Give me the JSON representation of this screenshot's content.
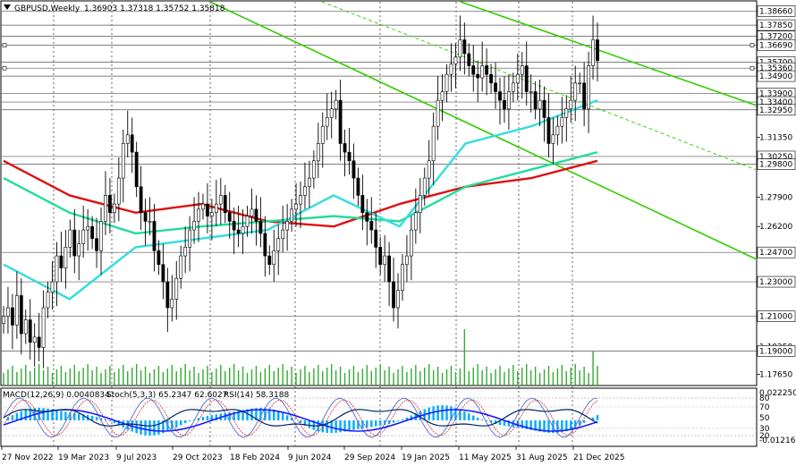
{
  "header": {
    "symbol": "GBPUSD,Weekly",
    "ohlc": "1.36903 1.37318 1.35752 1.35818"
  },
  "indicator_header": {
    "macd": "MACD(12,26,9) 0.0040834",
    "stoch": "Stoch(5,3,3) 65.2347 62.6027",
    "rsi": "RSI(14) 58.3188"
  },
  "x_labels": [
    "27 Nov 2022",
    "19 Mar 2023",
    "9 Jul 2023",
    "29 Oct 2023",
    "18 Feb 2024",
    "9 Jun 2024",
    "29 Sep 2024",
    "19 Jan 2025",
    "11 May 2025",
    "31 Aug 2025",
    "21 Dec 2025"
  ],
  "price_labels": [
    {
      "v": 1.3866,
      "t": "1.38660",
      "box": true
    },
    {
      "v": 1.3785,
      "t": "1.37850",
      "box": true
    },
    {
      "v": 1.372,
      "t": "1.37200",
      "box": true
    },
    {
      "v": 1.3669,
      "t": "1.36690",
      "box": true
    },
    {
      "v": 1.357,
      "t": "1.35700",
      "box": true
    },
    {
      "v": 1.3536,
      "t": "1.35360",
      "box": true
    },
    {
      "v": 1.349,
      "t": "1.34900",
      "box": true
    },
    {
      "v": 1.339,
      "t": "1.33900",
      "box": true
    },
    {
      "v": 1.334,
      "t": "1.33400",
      "box": true
    },
    {
      "v": 1.3295,
      "t": "1.32950",
      "box": true
    },
    {
      "v": 1.3135,
      "t": "1.31350",
      "box": false
    },
    {
      "v": 1.3025,
      "t": "1.30250",
      "box": true
    },
    {
      "v": 1.298,
      "t": "1.29800",
      "box": true
    },
    {
      "v": 1.279,
      "t": "1.27900",
      "box": false
    },
    {
      "v": 1.262,
      "t": "1.26200",
      "box": false
    },
    {
      "v": 1.247,
      "t": "1.24700",
      "box": true
    },
    {
      "v": 1.23,
      "t": "1.23000",
      "box": true
    },
    {
      "v": 1.21,
      "t": "1.21000",
      "box": true
    },
    {
      "v": 1.1925,
      "t": "1.19250",
      "box": false
    },
    {
      "v": 1.19,
      "t": "1.19000",
      "box": true
    },
    {
      "v": 1.1765,
      "t": "1.17650",
      "box": false
    }
  ],
  "osc_labels": [
    "0.0222505",
    "80",
    "70",
    "50",
    "30",
    "20",
    "-0.0121682"
  ],
  "colors": {
    "ema_red": "#dd1111",
    "ema_green": "#22dd99",
    "ema_cyan": "#33dddd",
    "channel": "#33cc00",
    "candles": "#000000",
    "macd_hist": "#00aaff",
    "signal": "#1a1aff",
    "stoch_main": "#6677cc",
    "stoch_signal": "#cc3333",
    "rsi": "#002266",
    "volume": "#33aa33"
  },
  "chart_data": {
    "type": "candlestick",
    "series_close": [
      1.21,
      1.215,
      1.205,
      1.222,
      1.2,
      1.208,
      1.195,
      1.198,
      1.192,
      1.215,
      1.224,
      1.23,
      1.245,
      1.238,
      1.25,
      1.26,
      1.245,
      1.252,
      1.26,
      1.262,
      1.255,
      1.248,
      1.265,
      1.28,
      1.27,
      1.275,
      1.29,
      1.31,
      1.315,
      1.305,
      1.285,
      1.27,
      1.265,
      1.265,
      1.248,
      1.24,
      1.23,
      1.215,
      1.22,
      1.232,
      1.245,
      1.25,
      1.26,
      1.265,
      1.272,
      1.275,
      1.268,
      1.27,
      1.275,
      1.28,
      1.27,
      1.265,
      1.26,
      1.258,
      1.262,
      1.268,
      1.272,
      1.265,
      1.258,
      1.245,
      1.24,
      1.248,
      1.255,
      1.26,
      1.265,
      1.272,
      1.275,
      1.28,
      1.285,
      1.29,
      1.3,
      1.31,
      1.32,
      1.325,
      1.33,
      1.335,
      1.31,
      1.305,
      1.3,
      1.29,
      1.28,
      1.27,
      1.265,
      1.26,
      1.25,
      1.24,
      1.245,
      1.23,
      1.215,
      1.225,
      1.24,
      1.245,
      1.26,
      1.27,
      1.28,
      1.29,
      1.3,
      1.32,
      1.335,
      1.34,
      1.35,
      1.356,
      1.36,
      1.37,
      1.362,
      1.355,
      1.35,
      1.348,
      1.355,
      1.35,
      1.345,
      1.34,
      1.335,
      1.33,
      1.34,
      1.345,
      1.35,
      1.355,
      1.34,
      1.34,
      1.33,
      1.335,
      1.325,
      1.31,
      1.315,
      1.32,
      1.325,
      1.33,
      1.335,
      1.345,
      1.345,
      1.33,
      1.355,
      1.37,
      1.358
    ],
    "y_range": [
      1.17,
      1.392
    ],
    "ema_red": [
      1.3,
      1.28,
      1.27,
      1.275,
      1.265,
      1.262,
      1.275,
      1.285,
      1.29,
      1.3
    ],
    "ema_green": [
      1.29,
      1.27,
      1.258,
      1.262,
      1.265,
      1.268,
      1.265,
      1.285,
      1.295,
      1.305
    ],
    "ema_cyan": [
      1.24,
      1.22,
      1.25,
      1.255,
      1.26,
      1.28,
      1.262,
      1.31,
      1.32,
      1.335
    ]
  }
}
